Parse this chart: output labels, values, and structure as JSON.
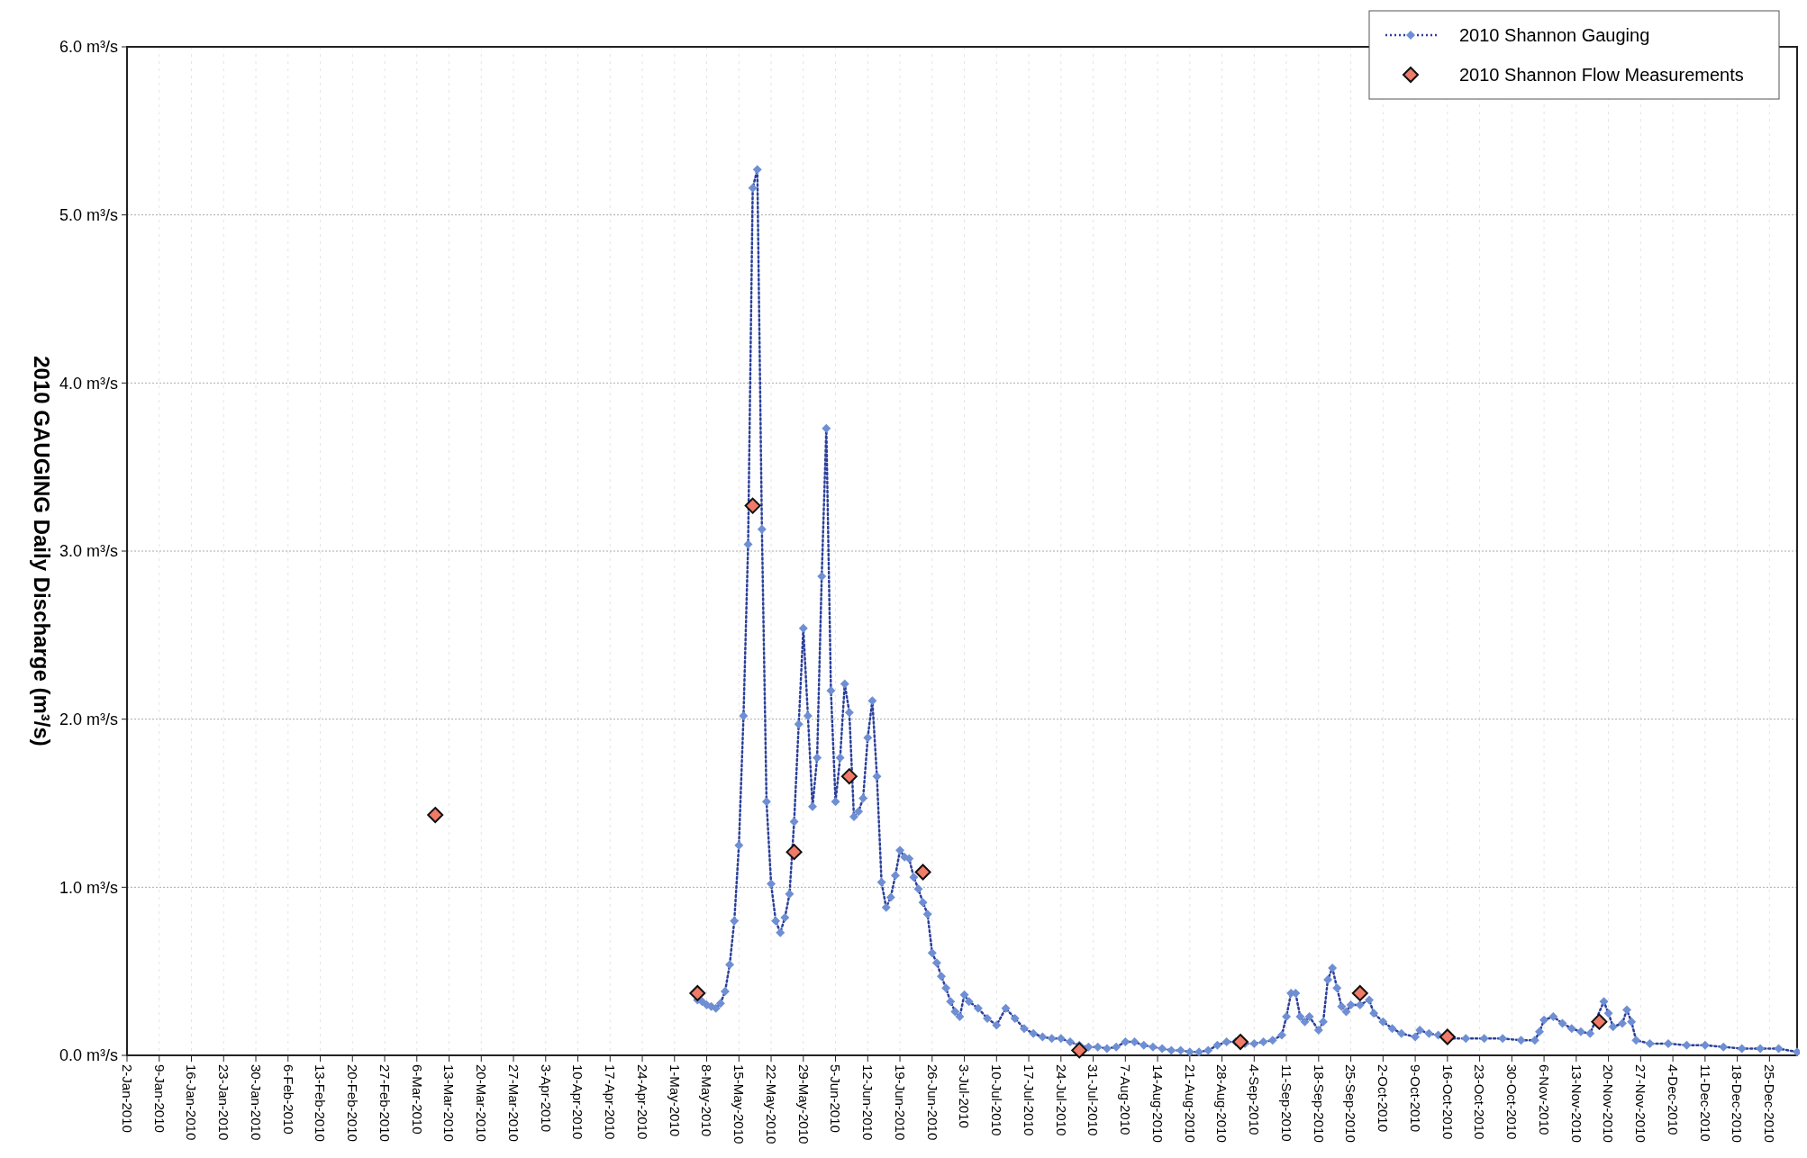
{
  "chart_data": {
    "type": "line",
    "ylabel": "2010 GAUGING Daily Discharge (m³/s)",
    "xlim": [
      "2010-01-02",
      "2010-12-31"
    ],
    "xticks": [
      {
        "value": "2010-01-02",
        "label": "2-Jan-2010"
      },
      {
        "value": "2010-01-09",
        "label": "9-Jan-2010"
      },
      {
        "value": "2010-01-16",
        "label": "16-Jan-2010"
      },
      {
        "value": "2010-01-23",
        "label": "23-Jan-2010"
      },
      {
        "value": "2010-01-30",
        "label": "30-Jan-2010"
      },
      {
        "value": "2010-02-06",
        "label": "6-Feb-2010"
      },
      {
        "value": "2010-02-13",
        "label": "13-Feb-2010"
      },
      {
        "value": "2010-02-20",
        "label": "20-Feb-2010"
      },
      {
        "value": "2010-02-27",
        "label": "27-Feb-2010"
      },
      {
        "value": "2010-03-06",
        "label": "6-Mar-2010"
      },
      {
        "value": "2010-03-13",
        "label": "13-Mar-2010"
      },
      {
        "value": "2010-03-20",
        "label": "20-Mar-2010"
      },
      {
        "value": "2010-03-27",
        "label": "27-Mar-2010"
      },
      {
        "value": "2010-04-03",
        "label": "3-Apr-2010"
      },
      {
        "value": "2010-04-10",
        "label": "10-Apr-2010"
      },
      {
        "value": "2010-04-17",
        "label": "17-Apr-2010"
      },
      {
        "value": "2010-04-24",
        "label": "24-Apr-2010"
      },
      {
        "value": "2010-05-01",
        "label": "1-May-2010"
      },
      {
        "value": "2010-05-08",
        "label": "8-May-2010"
      },
      {
        "value": "2010-05-15",
        "label": "15-May-2010"
      },
      {
        "value": "2010-05-22",
        "label": "22-May-2010"
      },
      {
        "value": "2010-05-29",
        "label": "29-May-2010"
      },
      {
        "value": "2010-06-05",
        "label": "5-Jun-2010"
      },
      {
        "value": "2010-06-12",
        "label": "12-Jun-2010"
      },
      {
        "value": "2010-06-19",
        "label": "19-Jun-2010"
      },
      {
        "value": "2010-06-26",
        "label": "26-Jun-2010"
      },
      {
        "value": "2010-07-03",
        "label": "3-Jul-2010"
      },
      {
        "value": "2010-07-10",
        "label": "10-Jul-2010"
      },
      {
        "value": "2010-07-17",
        "label": "17-Jul-2010"
      },
      {
        "value": "2010-07-24",
        "label": "24-Jul-2010"
      },
      {
        "value": "2010-07-31",
        "label": "31-Jul-2010"
      },
      {
        "value": "2010-08-07",
        "label": "7-Aug-2010"
      },
      {
        "value": "2010-08-14",
        "label": "14-Aug-2010"
      },
      {
        "value": "2010-08-21",
        "label": "21-Aug-2010"
      },
      {
        "value": "2010-08-28",
        "label": "28-Aug-2010"
      },
      {
        "value": "2010-09-04",
        "label": "4-Sep-2010"
      },
      {
        "value": "2010-09-11",
        "label": "11-Sep-2010"
      },
      {
        "value": "2010-09-18",
        "label": "18-Sep-2010"
      },
      {
        "value": "2010-09-25",
        "label": "25-Sep-2010"
      },
      {
        "value": "2010-10-02",
        "label": "2-Oct-2010"
      },
      {
        "value": "2010-10-09",
        "label": "9-Oct-2010"
      },
      {
        "value": "2010-10-16",
        "label": "16-Oct-2010"
      },
      {
        "value": "2010-10-23",
        "label": "23-Oct-2010"
      },
      {
        "value": "2010-10-30",
        "label": "30-Oct-2010"
      },
      {
        "value": "2010-11-06",
        "label": "6-Nov-2010"
      },
      {
        "value": "2010-11-13",
        "label": "13-Nov-2010"
      },
      {
        "value": "2010-11-20",
        "label": "20-Nov-2010"
      },
      {
        "value": "2010-11-27",
        "label": "27-Nov-2010"
      },
      {
        "value": "2010-12-04",
        "label": "4-Dec-2010"
      },
      {
        "value": "2010-12-11",
        "label": "11-Dec-2010"
      },
      {
        "value": "2010-12-18",
        "label": "18-Dec-2010"
      },
      {
        "value": "2010-12-25",
        "label": "25-Dec-2010"
      }
    ],
    "ylim": [
      0,
      6
    ],
    "yticks": [
      {
        "value": 0,
        "label": "0.0 m³/s"
      },
      {
        "value": 1,
        "label": "1.0 m³/s"
      },
      {
        "value": 2,
        "label": "2.0 m³/s"
      },
      {
        "value": 3,
        "label": "3.0 m³/s"
      },
      {
        "value": 4,
        "label": "4.0 m³/s"
      },
      {
        "value": 5,
        "label": "5.0 m³/s"
      },
      {
        "value": 6,
        "label": "6.0 m³/s"
      }
    ],
    "grid": true,
    "legend": "top right",
    "marker": "diamond",
    "series": [
      {
        "name": "2010 Shannon Gauging",
        "line_style": "dotted",
        "color": "#6f8fd4",
        "x": [
          "2010-05-06",
          "2010-05-07",
          "2010-05-08",
          "2010-05-09",
          "2010-05-10",
          "2010-05-11",
          "2010-05-12",
          "2010-05-13",
          "2010-05-14",
          "2010-05-15",
          "2010-05-16",
          "2010-05-17",
          "2010-05-18",
          "2010-05-19",
          "2010-05-20",
          "2010-05-21",
          "2010-05-22",
          "2010-05-23",
          "2010-05-24",
          "2010-05-25",
          "2010-05-26",
          "2010-05-27",
          "2010-05-28",
          "2010-05-29",
          "2010-05-30",
          "2010-05-31",
          "2010-06-01",
          "2010-06-02",
          "2010-06-03",
          "2010-06-04",
          "2010-06-05",
          "2010-06-06",
          "2010-06-07",
          "2010-06-08",
          "2010-06-09",
          "2010-06-10",
          "2010-06-11",
          "2010-06-12",
          "2010-06-13",
          "2010-06-14",
          "2010-06-15",
          "2010-06-16",
          "2010-06-17",
          "2010-06-18",
          "2010-06-19",
          "2010-06-20",
          "2010-06-21",
          "2010-06-22",
          "2010-06-23",
          "2010-06-24",
          "2010-06-25",
          "2010-06-26",
          "2010-06-27",
          "2010-06-28",
          "2010-06-29",
          "2010-06-30",
          "2010-07-01",
          "2010-07-02",
          "2010-07-03",
          "2010-07-04",
          "2010-07-06",
          "2010-07-08",
          "2010-07-10",
          "2010-07-12",
          "2010-07-14",
          "2010-07-16",
          "2010-07-18",
          "2010-07-20",
          "2010-07-22",
          "2010-07-24",
          "2010-07-26",
          "2010-07-28",
          "2010-07-30",
          "2010-08-01",
          "2010-08-03",
          "2010-08-05",
          "2010-08-07",
          "2010-08-09",
          "2010-08-11",
          "2010-08-13",
          "2010-08-15",
          "2010-08-17",
          "2010-08-19",
          "2010-08-21",
          "2010-08-23",
          "2010-08-25",
          "2010-08-27",
          "2010-08-29",
          "2010-08-31",
          "2010-09-02",
          "2010-09-04",
          "2010-09-06",
          "2010-09-08",
          "2010-09-10",
          "2010-09-11",
          "2010-09-12",
          "2010-09-13",
          "2010-09-14",
          "2010-09-15",
          "2010-09-16",
          "2010-09-18",
          "2010-09-19",
          "2010-09-20",
          "2010-09-21",
          "2010-09-22",
          "2010-09-23",
          "2010-09-24",
          "2010-09-25",
          "2010-09-27",
          "2010-09-29",
          "2010-09-30",
          "2010-10-02",
          "2010-10-04",
          "2010-10-06",
          "2010-10-09",
          "2010-10-10",
          "2010-10-12",
          "2010-10-14",
          "2010-10-16",
          "2010-10-20",
          "2010-10-24",
          "2010-10-28",
          "2010-11-01",
          "2010-11-04",
          "2010-11-05",
          "2010-11-06",
          "2010-11-08",
          "2010-11-10",
          "2010-11-12",
          "2010-11-14",
          "2010-11-16",
          "2010-11-19",
          "2010-11-20",
          "2010-11-21",
          "2010-11-23",
          "2010-11-24",
          "2010-11-25",
          "2010-11-26",
          "2010-11-29",
          "2010-12-03",
          "2010-12-07",
          "2010-12-11",
          "2010-12-15",
          "2010-12-19",
          "2010-12-23",
          "2010-12-27",
          "2010-12-31"
        ],
        "values": [
          0.33,
          0.32,
          0.3,
          0.29,
          0.28,
          0.31,
          0.38,
          0.54,
          0.8,
          1.25,
          2.02,
          3.04,
          5.16,
          5.27,
          3.13,
          1.51,
          1.02,
          0.8,
          0.73,
          0.82,
          0.96,
          1.39,
          1.97,
          2.54,
          2.02,
          1.48,
          1.77,
          2.85,
          3.73,
          2.17,
          1.51,
          1.77,
          2.21,
          2.04,
          1.42,
          1.45,
          1.53,
          1.89,
          2.11,
          1.66,
          1.03,
          0.88,
          0.94,
          1.07,
          1.22,
          1.18,
          1.17,
          1.06,
          0.99,
          0.91,
          0.84,
          0.61,
          0.55,
          0.47,
          0.4,
          0.32,
          0.26,
          0.23,
          0.36,
          0.32,
          0.28,
          0.22,
          0.18,
          0.28,
          0.22,
          0.16,
          0.13,
          0.11,
          0.1,
          0.1,
          0.08,
          0.06,
          0.05,
          0.05,
          0.04,
          0.05,
          0.08,
          0.08,
          0.06,
          0.05,
          0.04,
          0.03,
          0.03,
          0.02,
          0.02,
          0.03,
          0.06,
          0.08,
          0.08,
          0.07,
          0.07,
          0.08,
          0.09,
          0.12,
          0.23,
          0.37,
          0.37,
          0.23,
          0.2,
          0.23,
          0.15,
          0.2,
          0.45,
          0.52,
          0.4,
          0.29,
          0.26,
          0.3,
          0.3,
          0.33,
          0.25,
          0.2,
          0.16,
          0.13,
          0.11,
          0.15,
          0.13,
          0.12,
          0.1,
          0.1,
          0.1,
          0.1,
          0.09,
          0.09,
          0.14,
          0.21,
          0.23,
          0.19,
          0.16,
          0.14,
          0.13,
          0.32,
          0.25,
          0.17,
          0.19,
          0.27,
          0.2,
          0.09,
          0.07,
          0.07,
          0.06,
          0.06,
          0.05,
          0.04,
          0.04,
          0.04,
          0.02
        ]
      },
      {
        "name": "2010 Shannon Flow Measurements",
        "type": "scatter",
        "color": "#f07b68",
        "x": [
          "2010-03-10",
          "2010-05-06",
          "2010-05-18",
          "2010-05-27",
          "2010-06-08",
          "2010-06-24",
          "2010-07-28",
          "2010-09-01",
          "2010-09-27",
          "2010-10-16",
          "2010-11-18"
        ],
        "values": [
          1.43,
          0.37,
          3.27,
          1.21,
          1.66,
          1.09,
          0.03,
          0.08,
          0.37,
          0.11,
          0.2
        ]
      }
    ]
  }
}
